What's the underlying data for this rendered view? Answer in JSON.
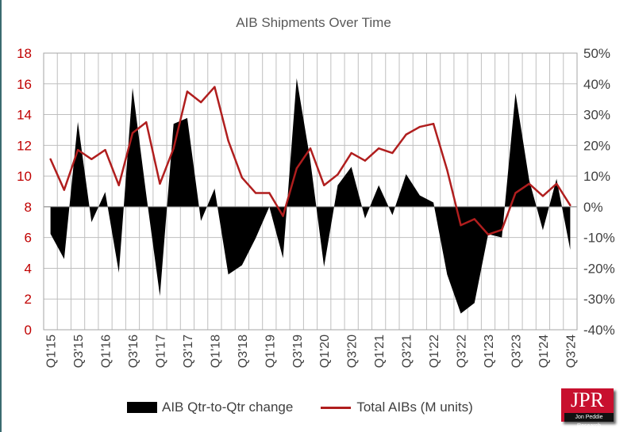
{
  "chart_data": {
    "type": "area+line",
    "title": "AIB Shipments Over Time",
    "categories": [
      "Q1'15",
      "Q2'15",
      "Q3'15",
      "Q4'15",
      "Q1'16",
      "Q2'16",
      "Q3'16",
      "Q4'16",
      "Q1'17",
      "Q2'17",
      "Q3'17",
      "Q4'17",
      "Q1'18",
      "Q2'18",
      "Q3'18",
      "Q4'18",
      "Q1'19",
      "Q2'19",
      "Q3'19",
      "Q4'19",
      "Q1'20",
      "Q2'20",
      "Q3'20",
      "Q4'20",
      "Q1'21",
      "Q2'21",
      "Q3'21",
      "Q4'21",
      "Q1'22",
      "Q2'22",
      "Q3'22",
      "Q4'22",
      "Q1'23",
      "Q2'23",
      "Q3'23",
      "Q4'23",
      "Q1'24",
      "Q2'24",
      "Q3'24"
    ],
    "left_axis": {
      "ylim": [
        0,
        18
      ],
      "ticks": [
        "0",
        "2",
        "4",
        "6",
        "8",
        "10",
        "12",
        "14",
        "16",
        "18"
      ],
      "color": "#c00000"
    },
    "right_axis": {
      "ylim": [
        -40,
        50
      ],
      "ticks": [
        "-40%",
        "-30%",
        "-20%",
        "-10%",
        "0%",
        "10%",
        "20%",
        "30%",
        "40%",
        "50%"
      ]
    },
    "grid": true,
    "legend_position": "bottom",
    "series": [
      {
        "name": "AIB Qtr-to-Qtr change",
        "type": "area",
        "axis": "right",
        "unit": "%",
        "color": "#000000",
        "values": [
          -8.8,
          -17,
          27.6,
          -5,
          4.8,
          -21.4,
          38.7,
          4,
          -29,
          27,
          28.9,
          -4.6,
          5.9,
          -22,
          -19,
          -10.2,
          0,
          -16.7,
          41.8,
          15,
          -19.5,
          7,
          13,
          -3.8,
          7,
          -2.7,
          10.6,
          3.7,
          1.4,
          -22,
          -34.7,
          -31.3,
          -8.9,
          -10,
          37,
          8.7,
          -7.6,
          9.1,
          -14
        ]
      },
      {
        "name": "Total AIBs (M units)",
        "type": "line",
        "axis": "left",
        "color": "#b01e1e",
        "values": [
          11.1,
          9.1,
          11.7,
          11.1,
          11.7,
          9.4,
          12.8,
          13.5,
          9.5,
          11.8,
          15.5,
          14.8,
          15.8,
          12.3,
          9.9,
          8.9,
          8.9,
          7.4,
          10.5,
          11.8,
          9.4,
          10.1,
          11.5,
          11.0,
          11.8,
          11.5,
          12.7,
          13.2,
          13.4,
          10.4,
          6.8,
          7.2,
          6.2,
          6.5,
          8.9,
          9.5,
          8.7,
          9.5,
          8.1
        ]
      }
    ]
  },
  "logo": {
    "text": "JPR",
    "subtext": "Jon Peddie Research"
  }
}
